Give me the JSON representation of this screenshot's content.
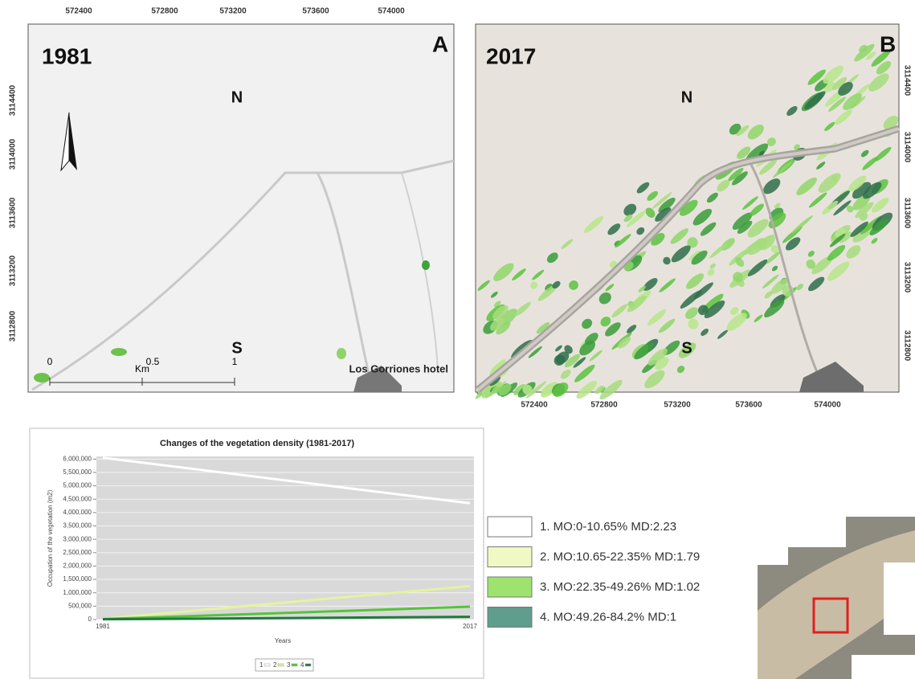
{
  "panel_a": {
    "year": "1981",
    "letter": "A",
    "north": "N",
    "south": "S",
    "scale_unit": "Km",
    "scale_labels": [
      "0",
      "0.5",
      "1"
    ],
    "place": "Los Gorriones hotel",
    "x_coords": [
      572400,
      572800,
      573200,
      573600,
      574000
    ],
    "y_coords": [
      3114400,
      3114000,
      3113600,
      3113200,
      3112800
    ]
  },
  "panel_b": {
    "year": "2017",
    "letter": "B",
    "north": "N",
    "south": "S",
    "x_coords": [
      572400,
      572800,
      573200,
      573600,
      574000
    ],
    "y_coords": [
      3114400,
      3114000,
      3113600,
      3113200,
      3112800
    ]
  },
  "chart_data": {
    "type": "line",
    "title": "Changes of the vegetation density (1981-2017)",
    "x_label": "Years",
    "y_label": "Occupation of the vegetation (m2)",
    "categories": [
      "1981",
      "2017"
    ],
    "series": [
      {
        "name": "1",
        "color": "#ffffff",
        "values": [
          6050000,
          4350000
        ]
      },
      {
        "name": "2",
        "color": "#e4f3a0",
        "values": [
          30000,
          1250000
        ]
      },
      {
        "name": "3",
        "color": "#55c43a",
        "values": [
          20000,
          480000
        ]
      },
      {
        "name": "4",
        "color": "#1f7a3c",
        "values": [
          10000,
          100000
        ]
      }
    ],
    "ylim": [
      0,
      6100000
    ],
    "yticks": [
      0,
      {
        "value": 500000,
        "label": "500,000"
      },
      {
        "value": 1000000,
        "label": "1,000,000"
      },
      {
        "value": 1500000,
        "label": "1,500,000"
      },
      {
        "value": 2000000,
        "label": "2,000,000"
      },
      {
        "value": 2500000,
        "label": "2,500,000"
      },
      {
        "value": 3000000,
        "label": "3,000,000"
      },
      {
        "value": 3500000,
        "label": "3,500,000"
      },
      {
        "value": 4000000,
        "label": "4,000,000"
      },
      {
        "value": 4500000,
        "label": "4,500,000"
      },
      {
        "value": 5000000,
        "label": "5,000,000"
      },
      {
        "value": 5500000,
        "label": "5,500,000"
      },
      {
        "value": 6000000,
        "label": "6,000,000"
      }
    ],
    "grid": true
  },
  "legend": [
    {
      "label": "1. MO:0-10.65% MD:2.23",
      "color": "#ffffff"
    },
    {
      "label": "2. MO:10.65-22.35% MD:1.79",
      "color": "#f0f8c4"
    },
    {
      "label": "3. MO:22.35-49.26% MD:1.02",
      "color": "#9ee36e"
    },
    {
      "label": "4. MO:49.26-84.2% MD:1",
      "color": "#5f9e8c"
    }
  ]
}
